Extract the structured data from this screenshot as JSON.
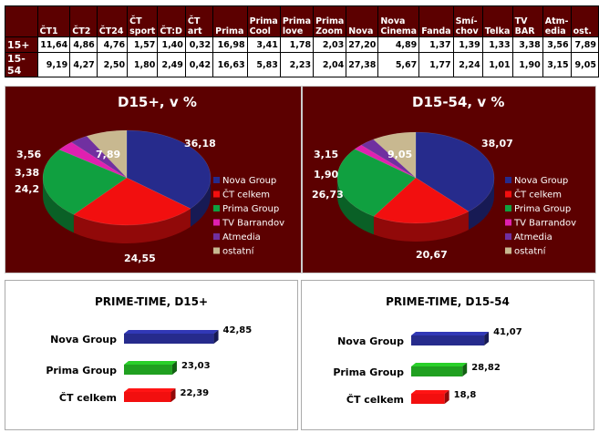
{
  "table": {
    "headers": [
      "",
      "ČT1",
      "ČT2",
      "ČT24",
      "ČT sport",
      "ČT:D",
      "ČT art",
      "Prima",
      "Prima Cool",
      "Prima love",
      "Prima Zoom",
      "Nova",
      "Nova Cinema",
      "Fanda",
      "Smí- chov",
      "Telka",
      "TV BAR",
      "Atm- edia",
      "ost."
    ],
    "rows": [
      [
        "15+",
        "11,64",
        "4,86",
        "4,76",
        "1,57",
        "1,40",
        "0,32",
        "16,98",
        "3,41",
        "1,78",
        "2,03",
        "27,20",
        "4,89",
        "1,37",
        "1,39",
        "1,33",
        "3,38",
        "3,56",
        "7,89"
      ],
      [
        "15-54",
        "9,19",
        "4,27",
        "2,50",
        "1,80",
        "2,49",
        "0,42",
        "16,63",
        "5,83",
        "2,23",
        "2,04",
        "27,38",
        "5,67",
        "1,77",
        "2,24",
        "1,01",
        "1,90",
        "3,15",
        "9,05"
      ]
    ]
  },
  "chart_data": [
    {
      "type": "pie",
      "title": "D15+, v %",
      "categories": [
        "Nova Group",
        "ČT celkem",
        "Prima Group",
        "TV Barrandov",
        "Atmedia",
        "ostatní"
      ],
      "values": [
        36.18,
        24.55,
        24.2,
        3.38,
        3.56,
        7.89
      ],
      "labels": [
        "36,18",
        "24,55",
        "24,2",
        "3,38",
        "3,56",
        "7,89"
      ],
      "legend": "right"
    },
    {
      "type": "pie",
      "title": "D15-54, v %",
      "categories": [
        "Nova Group",
        "ČT celkem",
        "Prima Group",
        "TV Barrandov",
        "Atmedia",
        "ostatní"
      ],
      "values": [
        38.07,
        20.67,
        26.73,
        1.9,
        3.15,
        9.05
      ],
      "labels": [
        "38,07",
        "20,67",
        "26,73",
        "1,90",
        "3,15",
        "9,05"
      ],
      "legend": "right"
    },
    {
      "type": "bar",
      "title": "PRIME-TIME, D15+",
      "categories": [
        "Nova Group",
        "Prima Group",
        "ČT celkem"
      ],
      "values": [
        42.85,
        23.03,
        22.39
      ],
      "labels": [
        "42,85",
        "23,03",
        "22,39"
      ]
    },
    {
      "type": "bar",
      "title": "PRIME-TIME, D15-54",
      "categories": [
        "Nova Group",
        "Prima Group",
        "ČT celkem"
      ],
      "values": [
        41.07,
        28.82,
        18.8
      ],
      "labels": [
        "41,07",
        "28,82",
        "18,8"
      ]
    }
  ],
  "colors": [
    "#262b8c",
    "#f20f0f",
    "#10a040",
    "#e020b0",
    "#7030a0",
    "#c8b890"
  ],
  "bar_colors": [
    "#262b8c",
    "#20a020",
    "#f20f0f"
  ]
}
